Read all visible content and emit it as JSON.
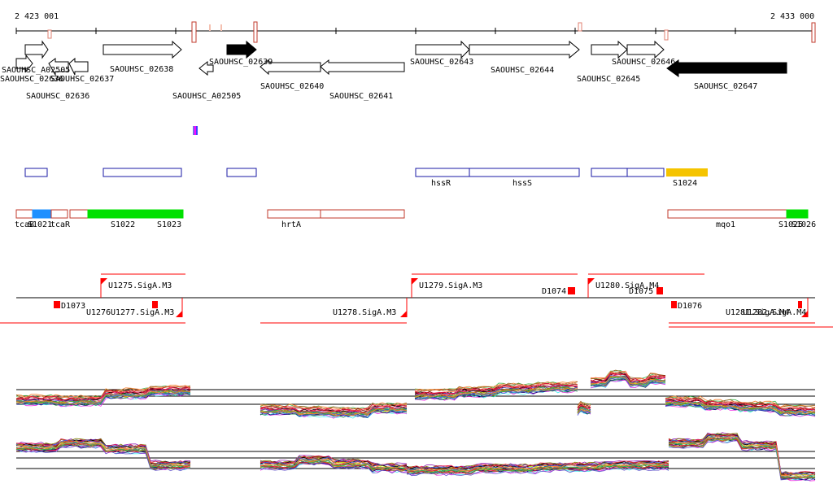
{
  "ruler": {
    "start_label": "2 423 001",
    "end_label": "2 433 000"
  },
  "genes": [
    {
      "name": "SAOUHSC_02636",
      "label": "SAOUHSC_02636",
      "strand": "+",
      "fill": "white"
    },
    {
      "name": "SAOUHSC_A02505",
      "label": "SAOUHSC_A02505",
      "strand": "+",
      "fill": "white"
    },
    {
      "name": "SAOUHSC_02637a",
      "label": "SAOUHSC_02637",
      "strand": "-",
      "fill": "white"
    },
    {
      "name": "SAOUHSC_02636b",
      "label": "SAOUHSC_02636",
      "strand": "+",
      "fill": "white"
    },
    {
      "name": "SAOUHSC_02637",
      "label": "SAOUHSC_02637",
      "strand": "-",
      "fill": "white"
    },
    {
      "name": "SAOUHSC_02638",
      "label": "SAOUHSC_02638",
      "strand": "+",
      "fill": "white"
    },
    {
      "name": "SAOUHSC_A02505b",
      "label": "SAOUHSC_A02505",
      "strand": "-",
      "fill": "white"
    },
    {
      "name": "SAOUHSC_02639",
      "label": "SAOUHSC_02639",
      "strand": "+",
      "fill": "black"
    },
    {
      "name": "SAOUHSC_02640",
      "label": "SAOUHSC_02640",
      "strand": "-",
      "fill": "white"
    },
    {
      "name": "SAOUHSC_02641",
      "label": "SAOUHSC_02641",
      "strand": "-",
      "fill": "white"
    },
    {
      "name": "SAOUHSC_02643",
      "label": "SAOUHSC_02643",
      "strand": "+",
      "fill": "white"
    },
    {
      "name": "SAOUHSC_02644",
      "label": "SAOUHSC_02644",
      "strand": "+",
      "fill": "white"
    },
    {
      "name": "SAOUHSC_02645",
      "label": "SAOUHSC_02645",
      "strand": "+",
      "fill": "white"
    },
    {
      "name": "SAOUHSC_02646",
      "label": "SAOUHSC_02646",
      "strand": "+",
      "fill": "white"
    },
    {
      "name": "SAOUHSC_02647",
      "label": "SAOUHSC_02647",
      "strand": "-",
      "fill": "black"
    }
  ],
  "blue_features": [
    {
      "label": ""
    },
    {
      "label": ""
    },
    {
      "label": ""
    },
    {
      "label": "hssR"
    },
    {
      "label": "hssS"
    },
    {
      "label": ""
    },
    {
      "label": ""
    }
  ],
  "orange_feature": {
    "label": "S1024"
  },
  "red_features": [
    {
      "label": "tcaB"
    },
    {
      "label": "S1021"
    },
    {
      "label": "tcaR"
    },
    {
      "label": "S1022"
    },
    {
      "label": "S1023"
    },
    {
      "label": "hrtA"
    },
    {
      "label": "mqo1"
    },
    {
      "label": "S1025"
    },
    {
      "label": "S1026"
    }
  ],
  "regulatory_labels": [
    {
      "label": "U1275.SigA.M3"
    },
    {
      "label": "U1279.SigA.M3"
    },
    {
      "label": "D1074"
    },
    {
      "label": "U1280.SigA.M4"
    },
    {
      "label": "D1075"
    },
    {
      "label": "D1073"
    },
    {
      "label": "U1276"
    },
    {
      "label": "U1277.SigA.M3"
    },
    {
      "label": "U1278.SigA.M3"
    },
    {
      "label": "D1076"
    },
    {
      "label": "U1281.SigA.M4"
    },
    {
      "label": "U1282.SigA.M4"
    }
  ],
  "colors": {
    "gene_outline": "#000000",
    "blue_feature": "#1a1aa6",
    "red_feature": "#c0392b",
    "green_feature": "#00e000",
    "light_blue_feature": "#1e90ff",
    "orange_feature": "#f5c400",
    "regulatory": "#ff0000"
  }
}
